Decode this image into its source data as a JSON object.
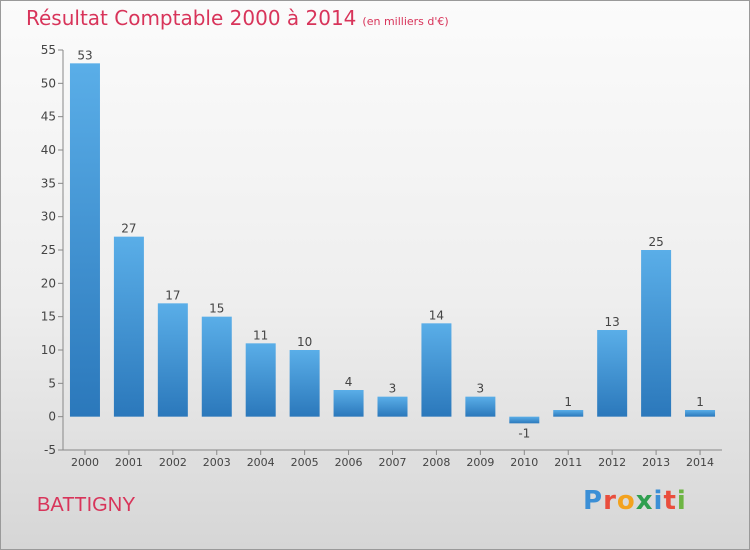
{
  "header": {
    "title": "Résultat Comptable 2000 à 2014",
    "unit": "(en milliers d'€)"
  },
  "footer": {
    "place": "BATTIGNY",
    "logo": [
      "P",
      "r",
      "o",
      "x",
      "i",
      "t",
      "i"
    ]
  },
  "colors": {
    "title": "#d8345a",
    "bar_top": "#5aaee8",
    "bar_bottom": "#2b78bb",
    "axis": "#888888",
    "logo": [
      "#3b8fd6",
      "#e94e3d",
      "#f3a21e",
      "#2f9f4f",
      "#3b8fd6",
      "#e94e3d",
      "#6db543"
    ]
  },
  "chart_data": {
    "type": "bar",
    "title": "Résultat Comptable 2000 à 2014",
    "ylabel": "(en milliers d'€)",
    "xlabel": "",
    "categories": [
      "2000",
      "2001",
      "2002",
      "2003",
      "2004",
      "2005",
      "2006",
      "2007",
      "2008",
      "2009",
      "2010",
      "2011",
      "2012",
      "2013",
      "2014"
    ],
    "values": [
      53,
      27,
      17,
      15,
      11,
      10,
      4,
      3,
      14,
      3,
      -1,
      1,
      13,
      25,
      1
    ],
    "value_labels": [
      "53",
      "27",
      "17",
      "15",
      "11",
      "10",
      "4",
      "3",
      "14",
      "3",
      "-1",
      "1",
      "13",
      "25",
      "1"
    ],
    "ylim": [
      -5,
      55
    ],
    "yticks": [
      "-5",
      "0",
      "5",
      "10",
      "15",
      "20",
      "25",
      "30",
      "35",
      "40",
      "45",
      "50",
      "55"
    ],
    "grid": false
  }
}
